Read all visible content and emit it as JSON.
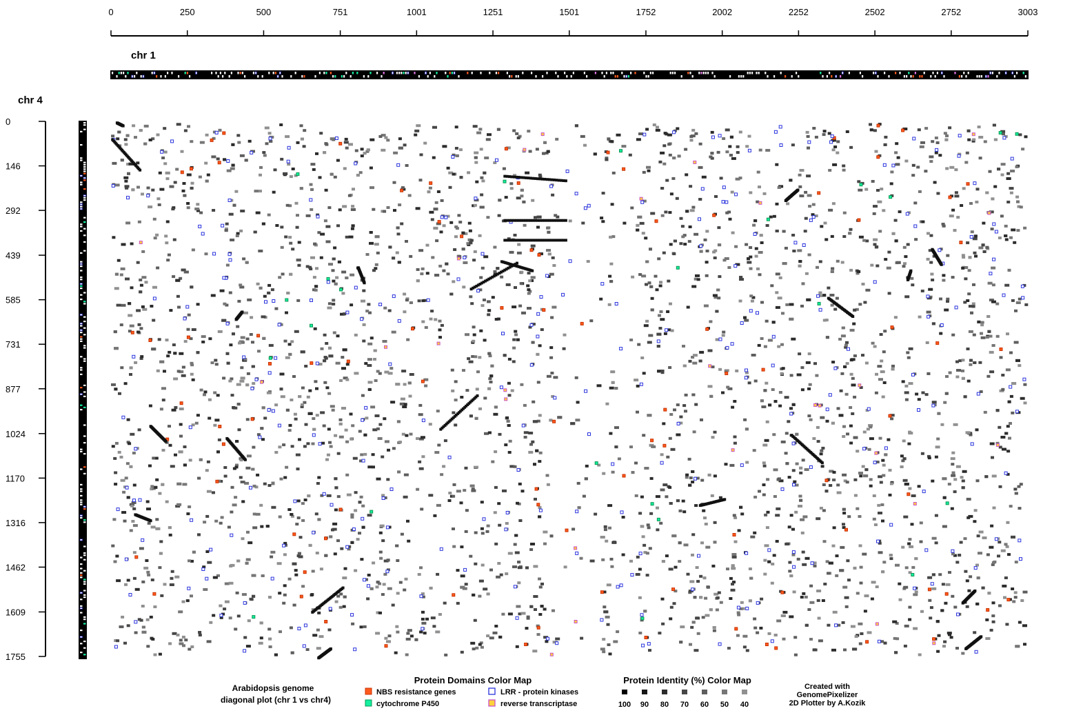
{
  "chart_data": {
    "type": "scatter",
    "title": "Arabidopsis genome",
    "subtitle": "diagonal plot (chr 1 vs chr4)",
    "xlabel": "chr 1",
    "ylabel": "chr 4",
    "x_ticks": [
      "0",
      "250",
      "500",
      "751",
      "1001",
      "1251",
      "1501",
      "1752",
      "2002",
      "2252",
      "2502",
      "2752",
      "3003"
    ],
    "y_ticks": [
      "0",
      "146",
      "292",
      "439",
      "585",
      "731",
      "877",
      "1024",
      "1170",
      "1316",
      "1462",
      "1609",
      "1755"
    ],
    "xlim": [
      0,
      3003
    ],
    "ylim": [
      0,
      1755
    ],
    "y_inverted": true,
    "domain_legend_title": "Protein Domains Color Map",
    "domains": [
      {
        "label": "NBS resistance genes",
        "fill": "#ff5a1e",
        "border": "#c83200"
      },
      {
        "label": "LRR - protein kinases",
        "fill": "#ffffff",
        "border": "#2832dc"
      },
      {
        "label": "cytochrome P450",
        "fill": "#14f0a0",
        "border": "#0a9650"
      },
      {
        "label": "reverse transcriptase",
        "fill": "#ffd23c",
        "border": "#c850c8"
      }
    ],
    "identity_legend_title": "Protein Identity (%) Color Map",
    "identity_levels": [
      {
        "label": "100",
        "color": "#000000"
      },
      {
        "label": "90",
        "color": "#161616"
      },
      {
        "label": "80",
        "color": "#2c2c2c"
      },
      {
        "label": "70",
        "color": "#464646"
      },
      {
        "label": "60",
        "color": "#5e5e5e"
      },
      {
        "label": "50",
        "color": "#767676"
      },
      {
        "label": "40",
        "color": "#909090"
      }
    ],
    "credit_lines": [
      "Created with",
      "GenomePixelizer",
      "2D Plotter by A.Kozik"
    ],
    "diagonal_segments": [
      {
        "x0": 5,
        "y0": 60,
        "x1": 95,
        "y1": 160
      },
      {
        "x0": 20,
        "y0": 5,
        "x1": 40,
        "y1": 15
      },
      {
        "x0": 130,
        "y0": 1000,
        "x1": 180,
        "y1": 1050
      },
      {
        "x0": 380,
        "y0": 1040,
        "x1": 440,
        "y1": 1110
      },
      {
        "x0": 410,
        "y0": 650,
        "x1": 430,
        "y1": 625
      },
      {
        "x0": 80,
        "y0": 1290,
        "x1": 130,
        "y1": 1310
      },
      {
        "x0": 660,
        "y0": 1610,
        "x1": 760,
        "y1": 1530
      },
      {
        "x0": 680,
        "y0": 1760,
        "x1": 720,
        "y1": 1730
      },
      {
        "x0": 810,
        "y0": 480,
        "x1": 830,
        "y1": 530
      },
      {
        "x0": 1080,
        "y0": 1010,
        "x1": 1200,
        "y1": 900
      },
      {
        "x0": 1180,
        "y0": 550,
        "x1": 1330,
        "y1": 465
      },
      {
        "x0": 1280,
        "y0": 460,
        "x1": 1380,
        "y1": 490
      },
      {
        "x0": 1290,
        "y0": 325,
        "x1": 1490,
        "y1": 325
      },
      {
        "x0": 1290,
        "y0": 390,
        "x1": 1490,
        "y1": 390
      },
      {
        "x0": 1290,
        "y0": 180,
        "x1": 1490,
        "y1": 195
      },
      {
        "x0": 2230,
        "y0": 1030,
        "x1": 2330,
        "y1": 1120
      },
      {
        "x0": 2350,
        "y0": 580,
        "x1": 2430,
        "y1": 640
      },
      {
        "x0": 2610,
        "y0": 520,
        "x1": 2620,
        "y1": 490
      },
      {
        "x0": 2690,
        "y0": 420,
        "x1": 2720,
        "y1": 470
      },
      {
        "x0": 2790,
        "y0": 1580,
        "x1": 2830,
        "y1": 1540
      },
      {
        "x0": 2800,
        "y0": 1730,
        "x1": 2850,
        "y1": 1690
      },
      {
        "x0": 2210,
        "y0": 260,
        "x1": 2250,
        "y1": 225
      },
      {
        "x0": 1930,
        "y0": 1260,
        "x1": 2010,
        "y1": 1240
      }
    ]
  }
}
